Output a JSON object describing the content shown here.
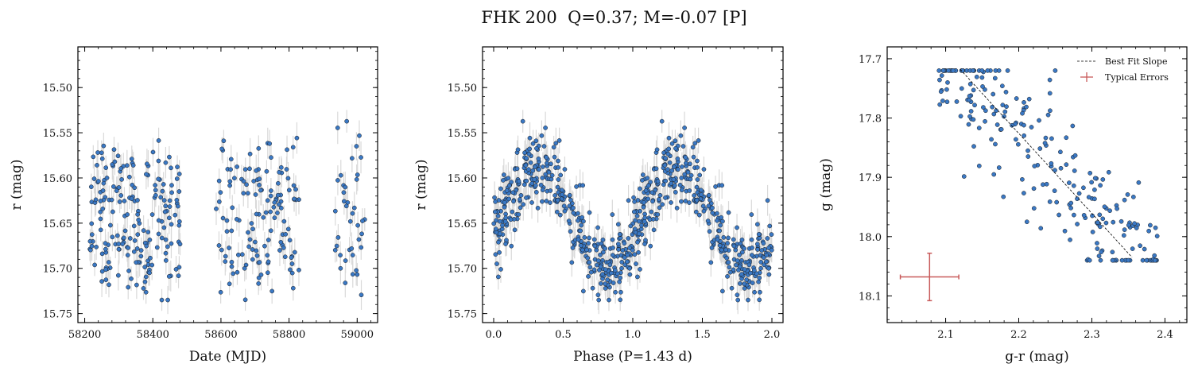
{
  "figure": {
    "title": "FHK 200  Q=0.37; M=-0.07 [P]",
    "colors": {
      "points": "#3a78c4",
      "edge": "#1a1a1a",
      "errorbars": "#d9d9d9",
      "fit": "#000000",
      "typical": "#c85a5a"
    }
  },
  "chart_data": [
    {
      "type": "scatter",
      "xlabel": "Date (MJD)",
      "ylabel": "r (mag)",
      "xlim": [
        58180,
        59060
      ],
      "ylim": [
        15.76,
        15.455
      ],
      "y_inverted": true,
      "xticks": [
        58200,
        58400,
        58600,
        58800,
        59000
      ],
      "yticks": [
        15.5,
        15.55,
        15.6,
        15.65,
        15.7,
        15.75
      ],
      "ytick_labels": [
        "15.50",
        "15.55",
        "15.60",
        "15.65",
        "15.70",
        "15.75"
      ],
      "error_bars": true,
      "n_points": 370
    },
    {
      "type": "scatter",
      "xlabel": "Phase (P=1.43 d)",
      "ylabel": "r (mag)",
      "xlim": [
        -0.08,
        2.08
      ],
      "ylim": [
        15.76,
        15.455
      ],
      "y_inverted": true,
      "xticks": [
        0.0,
        0.5,
        1.0,
        1.5,
        2.0
      ],
      "xtick_labels": [
        "0.0",
        "0.5",
        "1.0",
        "1.5",
        "2.0"
      ],
      "yticks": [
        15.5,
        15.55,
        15.6,
        15.65,
        15.7,
        15.75
      ],
      "ytick_labels": [
        "15.50",
        "15.55",
        "15.60",
        "15.65",
        "15.70",
        "15.75"
      ],
      "period_days": 1.43,
      "error_bars": true,
      "n_points": 740
    },
    {
      "type": "scatter",
      "xlabel": "g-r (mag)",
      "ylabel": "g (mag)",
      "xlim": [
        2.02,
        2.43
      ],
      "ylim": [
        18.145,
        17.68
      ],
      "y_inverted": true,
      "xticks": [
        2.1,
        2.2,
        2.3,
        2.4
      ],
      "xtick_labels": [
        "2.1",
        "2.2",
        "2.3",
        "2.4"
      ],
      "yticks": [
        17.7,
        17.8,
        17.9,
        18.0,
        18.1
      ],
      "ytick_labels": [
        "17.7",
        "17.8",
        "17.9",
        "18.0",
        "18.1"
      ],
      "legend": {
        "position": "top-right",
        "entries": [
          "Best Fit Slope",
          "Typical Errors"
        ]
      },
      "best_fit_line": {
        "x": [
          2.12,
          2.355
        ],
        "y": [
          17.718,
          18.035
        ]
      },
      "typical_errors": {
        "x": 2.078,
        "y": 18.068,
        "xerr": 0.04,
        "yerr": 0.04
      },
      "n_points": 235
    }
  ]
}
